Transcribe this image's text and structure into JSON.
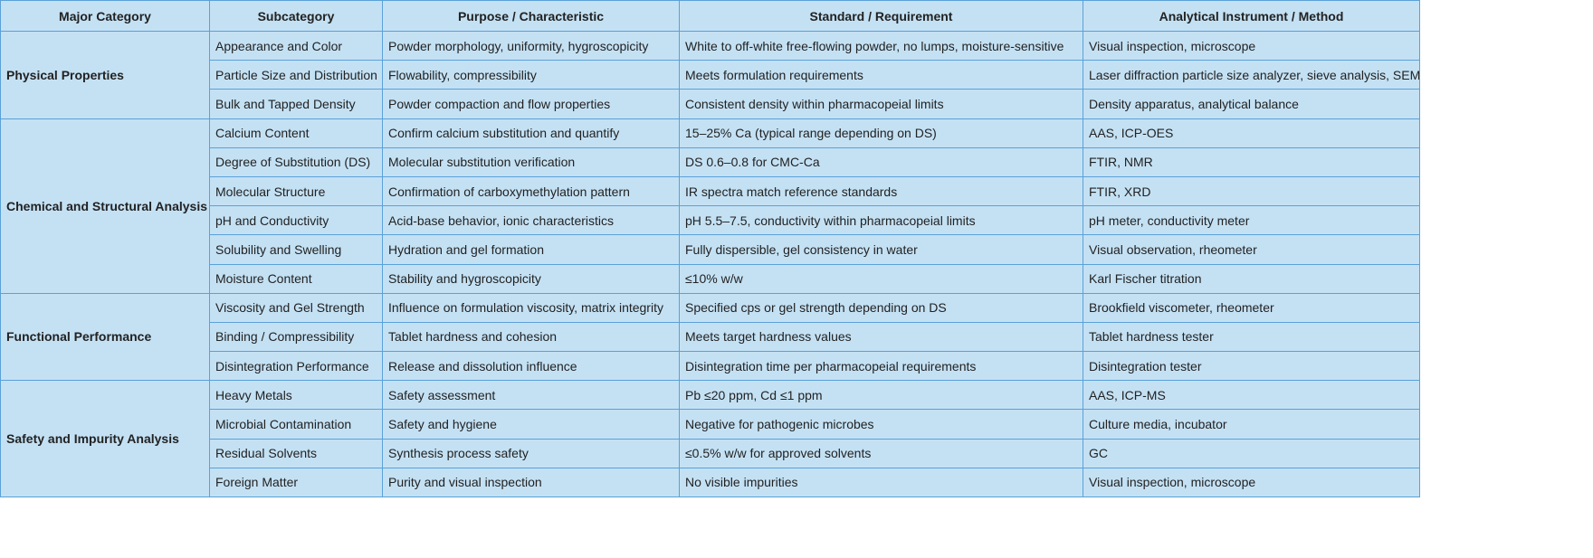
{
  "table": {
    "header": [
      "Major Category",
      "Subcategory",
      "Purpose / Characteristic",
      "Standard / Requirement",
      "Analytical Instrument / Method"
    ],
    "groups": [
      {
        "category": "Physical Properties",
        "rows": [
          [
            "Appearance and Color",
            "Powder morphology, uniformity, hygroscopicity",
            "White to off-white free-flowing powder, no lumps, moisture-sensitive",
            "Visual inspection, microscope"
          ],
          [
            "Particle Size and Distribution",
            "Flowability, compressibility",
            "Meets formulation requirements",
            "Laser diffraction particle size analyzer, sieve analysis, SEM"
          ],
          [
            "Bulk and Tapped Density",
            "Powder compaction and flow properties",
            "Consistent density within pharmacopeial limits",
            "Density apparatus, analytical balance"
          ]
        ]
      },
      {
        "category": "Chemical and Structural Analysis",
        "rows": [
          [
            "Calcium Content",
            "Confirm calcium substitution and quantify",
            "15–25% Ca (typical range depending on DS)",
            "AAS, ICP-OES"
          ],
          [
            "Degree of Substitution (DS)",
            "Molecular substitution verification",
            "DS 0.6–0.8 for CMC-Ca",
            "FTIR, NMR"
          ],
          [
            "Molecular Structure",
            "Confirmation of carboxymethylation pattern",
            "IR spectra match reference standards",
            "FTIR, XRD"
          ],
          [
            "pH and Conductivity",
            "Acid-base behavior, ionic characteristics",
            "pH 5.5–7.5, conductivity within pharmacopeial limits",
            "pH meter, conductivity meter"
          ],
          [
            "Solubility and Swelling",
            "Hydration and gel formation",
            "Fully dispersible, gel consistency in water",
            "Visual observation, rheometer"
          ],
          [
            "Moisture Content",
            "Stability and hygroscopicity",
            "≤10% w/w",
            "Karl Fischer titration"
          ]
        ]
      },
      {
        "category": "Functional Performance",
        "rows": [
          [
            "Viscosity and Gel Strength",
            "Influence on formulation viscosity, matrix integrity",
            "Specified cps or gel strength depending on DS",
            "Brookfield viscometer, rheometer"
          ],
          [
            "Binding / Compressibility",
            "Tablet hardness and cohesion",
            "Meets target hardness values",
            "Tablet hardness tester"
          ],
          [
            "Disintegration Performance",
            "Release and dissolution influence",
            "Disintegration time per pharmacopeial requirements",
            "Disintegration tester"
          ]
        ]
      },
      {
        "category": "Safety and Impurity Analysis",
        "rows": [
          [
            "Heavy Metals",
            "Safety assessment",
            "Pb ≤20 ppm, Cd ≤1 ppm",
            "AAS, ICP-MS"
          ],
          [
            "Microbial Contamination",
            "Safety and hygiene",
            "Negative for pathogenic microbes",
            "Culture media, incubator"
          ],
          [
            "Residual Solvents",
            "Synthesis process safety",
            "≤0.5% w/w for approved solvents",
            "GC"
          ],
          [
            "Foreign Matter",
            "Purity and visual inspection",
            "No visible impurities",
            "Visual inspection, microscope"
          ]
        ]
      }
    ]
  }
}
